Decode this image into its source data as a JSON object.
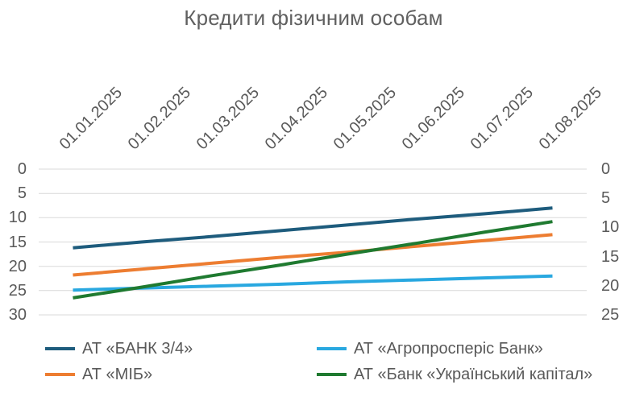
{
  "title": "Кредити фізичним особам",
  "colors": {
    "title_text": "#606060",
    "axis_text": "#595959",
    "gridline": "#d9d9d9",
    "background": "#ffffff"
  },
  "chart_data": {
    "type": "line",
    "title": "Кредити фізичним особам",
    "x_categories": [
      "01.01.2025",
      "01.02.2025",
      "01.03.2025",
      "01.04.2025",
      "01.05.2025",
      "01.06.2025",
      "01.07.2025",
      "01.08.2025"
    ],
    "xlabel": "",
    "ylabel": "",
    "left_axis": {
      "ticks": [
        0,
        5,
        10,
        15,
        20,
        25,
        30
      ],
      "min": 0,
      "max": 30,
      "inverted": true
    },
    "right_axis": {
      "ticks": [
        0,
        5,
        10,
        15,
        20,
        25
      ],
      "min": 0,
      "max": 25,
      "inverted": true
    },
    "grid": "horizontal",
    "legend_position": "bottom",
    "series": [
      {
        "name": "АТ «БАНК 3/4»",
        "color": "#1e5c7d",
        "values": [
          16.2,
          15.0,
          13.9,
          12.7,
          11.5,
          10.3,
          9.2,
          8.0
        ]
      },
      {
        "name": "АТ «МІБ»",
        "color": "#ed7d31",
        "values": [
          21.8,
          20.6,
          19.4,
          18.2,
          17.1,
          15.9,
          14.7,
          13.5
        ]
      },
      {
        "name": "АТ «Агропросперіс Банк»",
        "color": "#29a8e0",
        "values": [
          24.9,
          24.5,
          24.1,
          23.7,
          23.2,
          22.8,
          22.4,
          22.0
        ]
      },
      {
        "name": "АТ «Банк «Український капітал»",
        "color": "#1f7a30",
        "values": [
          26.5,
          24.3,
          22.0,
          19.8,
          17.5,
          15.3,
          13.0,
          10.8
        ]
      }
    ]
  }
}
